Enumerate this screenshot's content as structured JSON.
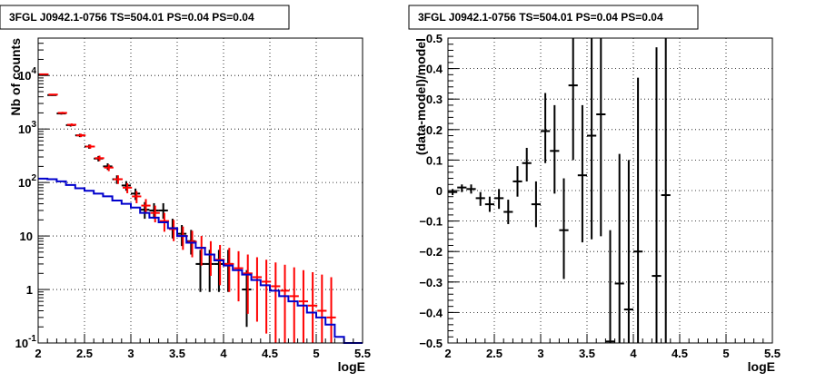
{
  "chart_data": [
    {
      "type": "scatter",
      "title": "3FGL J0942.1-0756 TS=504.01 PS=0.04 PS=0.04",
      "xlabel": "logE",
      "ylabel": "Nb of counts",
      "xlim": [
        2,
        5.5
      ],
      "ylim": [
        0.1,
        50000
      ],
      "yscale": "log",
      "grid": true,
      "x_ticks": [
        "2",
        "2.5",
        "3",
        "3.5",
        "4",
        "4.5",
        "5",
        "5.5"
      ],
      "y_ticks": [
        {
          "value": 0.1,
          "base": "10",
          "exp": "-1"
        },
        {
          "value": 1,
          "base": "1",
          "exp": ""
        },
        {
          "value": 10,
          "base": "10",
          "exp": ""
        },
        {
          "value": 100,
          "base": "10",
          "exp": "2"
        },
        {
          "value": 1000,
          "base": "10",
          "exp": "3"
        },
        {
          "value": 10000,
          "base": "10",
          "exp": "4"
        }
      ],
      "bin_width": 0.1,
      "series": [
        {
          "color": "#000000",
          "kind": "data",
          "points": [
            {
              "x": 2.05,
              "y": 10500,
              "lo": 10300,
              "hi": 10700
            },
            {
              "x": 2.15,
              "y": 4300,
              "lo": 4170,
              "hi": 4430
            },
            {
              "x": 2.25,
              "y": 1950,
              "lo": 1860,
              "hi": 2040
            },
            {
              "x": 2.35,
              "y": 1180,
              "lo": 1110,
              "hi": 1250
            },
            {
              "x": 2.45,
              "y": 760,
              "lo": 705,
              "hi": 815
            },
            {
              "x": 2.55,
              "y": 470,
              "lo": 428,
              "hi": 512
            },
            {
              "x": 2.65,
              "y": 280,
              "lo": 247,
              "hi": 313
            },
            {
              "x": 2.75,
              "y": 200,
              "lo": 172,
              "hi": 228
            },
            {
              "x": 2.85,
              "y": 115,
              "lo": 94,
              "hi": 136
            },
            {
              "x": 2.95,
              "y": 88,
              "lo": 70,
              "hi": 106
            },
            {
              "x": 3.05,
              "y": 62,
              "lo": 47,
              "hi": 77
            },
            {
              "x": 3.15,
              "y": 31,
              "lo": 21,
              "hi": 43
            },
            {
              "x": 3.25,
              "y": 30,
              "lo": 21,
              "hi": 41
            },
            {
              "x": 3.35,
              "y": 30,
              "lo": 21,
              "hi": 41
            },
            {
              "x": 3.45,
              "y": 14,
              "lo": 9,
              "hi": 21
            },
            {
              "x": 3.55,
              "y": 11,
              "lo": 6.5,
              "hi": 16
            },
            {
              "x": 3.65,
              "y": 8,
              "lo": 4.5,
              "hi": 13
            },
            {
              "x": 3.75,
              "y": 3,
              "lo": 0.9,
              "hi": 5.5
            },
            {
              "x": 3.85,
              "y": 3,
              "lo": 0.9,
              "hi": 5.5
            },
            {
              "x": 3.95,
              "y": 3,
              "lo": 0.9,
              "hi": 5.5
            },
            {
              "x": 4.05,
              "y": 3,
              "lo": 0.9,
              "hi": 5.5
            },
            {
              "x": 4.25,
              "y": 1,
              "lo": 0.2,
              "hi": 2.3
            }
          ]
        },
        {
          "color": "#ff0000",
          "kind": "model",
          "points": [
            {
              "x": 2.05,
              "y": 10500,
              "lo": 10300,
              "hi": 10700
            },
            {
              "x": 2.15,
              "y": 4400,
              "lo": 4270,
              "hi": 4530
            },
            {
              "x": 2.25,
              "y": 2000,
              "lo": 1910,
              "hi": 2090
            },
            {
              "x": 2.35,
              "y": 1200,
              "lo": 1130,
              "hi": 1270
            },
            {
              "x": 2.45,
              "y": 760,
              "lo": 705,
              "hi": 815
            },
            {
              "x": 2.55,
              "y": 470,
              "lo": 428,
              "hi": 512
            },
            {
              "x": 2.65,
              "y": 285,
              "lo": 252,
              "hi": 318
            },
            {
              "x": 2.75,
              "y": 190,
              "lo": 163,
              "hi": 217
            },
            {
              "x": 2.85,
              "y": 115,
              "lo": 94,
              "hi": 136
            },
            {
              "x": 2.95,
              "y": 80,
              "lo": 63,
              "hi": 97
            },
            {
              "x": 3.05,
              "y": 55,
              "lo": 41,
              "hi": 69
            },
            {
              "x": 3.15,
              "y": 37,
              "lo": 26,
              "hi": 49
            },
            {
              "x": 3.25,
              "y": 27,
              "lo": 18,
              "hi": 37
            },
            {
              "x": 3.35,
              "y": 19,
              "lo": 12,
              "hi": 27
            },
            {
              "x": 3.45,
              "y": 13.5,
              "lo": 8,
              "hi": 20
            },
            {
              "x": 3.55,
              "y": 10,
              "lo": 5.5,
              "hi": 15
            },
            {
              "x": 3.65,
              "y": 7.8,
              "lo": 4,
              "hi": 12.5
            },
            {
              "x": 3.75,
              "y": 6,
              "lo": 2.8,
              "hi": 10
            },
            {
              "x": 3.85,
              "y": 4.5,
              "lo": 1.8,
              "hi": 8
            },
            {
              "x": 3.95,
              "y": 3.6,
              "lo": 1.2,
              "hi": 6.8
            },
            {
              "x": 4.05,
              "y": 3,
              "lo": 0.9,
              "hi": 6
            },
            {
              "x": 4.15,
              "y": 2.5,
              "lo": 0.6,
              "hi": 5.2
            },
            {
              "x": 4.25,
              "y": 2,
              "lo": 0.35,
              "hi": 4.5
            },
            {
              "x": 4.35,
              "y": 1.7,
              "lo": 0.25,
              "hi": 4
            },
            {
              "x": 4.45,
              "y": 1.4,
              "lo": 0.15,
              "hi": 3.6
            },
            {
              "x": 4.55,
              "y": 1.15,
              "lo": 0.1,
              "hi": 3.2
            },
            {
              "x": 4.65,
              "y": 0.95,
              "lo": 0.1,
              "hi": 2.9
            },
            {
              "x": 4.75,
              "y": 0.75,
              "lo": 0.1,
              "hi": 2.6
            },
            {
              "x": 4.85,
              "y": 0.6,
              "lo": 0.1,
              "hi": 2.3
            },
            {
              "x": 4.95,
              "y": 0.5,
              "lo": 0.1,
              "hi": 2.1
            },
            {
              "x": 5.05,
              "y": 0.4,
              "lo": 0.1,
              "hi": 1.9
            },
            {
              "x": 5.15,
              "y": 0.3,
              "lo": 0.1,
              "hi": 1.7
            }
          ]
        },
        {
          "color": "#0000cc",
          "kind": "histogram",
          "bins": [
            {
              "x0": 2.0,
              "x1": 2.1,
              "y": 118
            },
            {
              "x0": 2.1,
              "x1": 2.2,
              "y": 115
            },
            {
              "x0": 2.2,
              "x1": 2.3,
              "y": 105
            },
            {
              "x0": 2.3,
              "x1": 2.4,
              "y": 90
            },
            {
              "x0": 2.4,
              "x1": 2.5,
              "y": 78
            },
            {
              "x0": 2.5,
              "x1": 2.6,
              "y": 70
            },
            {
              "x0": 2.6,
              "x1": 2.7,
              "y": 62
            },
            {
              "x0": 2.7,
              "x1": 2.8,
              "y": 55
            },
            {
              "x0": 2.8,
              "x1": 2.9,
              "y": 46
            },
            {
              "x0": 2.9,
              "x1": 3.0,
              "y": 40
            },
            {
              "x0": 3.0,
              "x1": 3.1,
              "y": 34
            },
            {
              "x0": 3.1,
              "x1": 3.2,
              "y": 27
            },
            {
              "x0": 3.2,
              "x1": 3.3,
              "y": 22
            },
            {
              "x0": 3.3,
              "x1": 3.4,
              "y": 18
            },
            {
              "x0": 3.4,
              "x1": 3.5,
              "y": 14
            },
            {
              "x0": 3.5,
              "x1": 3.6,
              "y": 10
            },
            {
              "x0": 3.6,
              "x1": 3.7,
              "y": 7.5
            },
            {
              "x0": 3.7,
              "x1": 3.8,
              "y": 6
            },
            {
              "x0": 3.8,
              "x1": 3.9,
              "y": 4.5
            },
            {
              "x0": 3.9,
              "x1": 4.0,
              "y": 3.5
            },
            {
              "x0": 4.0,
              "x1": 4.1,
              "y": 2.8
            },
            {
              "x0": 4.1,
              "x1": 4.2,
              "y": 2.3
            },
            {
              "x0": 4.2,
              "x1": 4.3,
              "y": 1.9
            },
            {
              "x0": 4.3,
              "x1": 4.4,
              "y": 1.5
            },
            {
              "x0": 4.4,
              "x1": 4.5,
              "y": 1.2
            },
            {
              "x0": 4.5,
              "x1": 4.6,
              "y": 0.95
            },
            {
              "x0": 4.6,
              "x1": 4.7,
              "y": 0.75
            },
            {
              "x0": 4.7,
              "x1": 4.8,
              "y": 0.6
            },
            {
              "x0": 4.8,
              "x1": 4.9,
              "y": 0.5
            },
            {
              "x0": 4.9,
              "x1": 5.0,
              "y": 0.37
            },
            {
              "x0": 5.0,
              "x1": 5.1,
              "y": 0.3
            },
            {
              "x0": 5.1,
              "x1": 5.2,
              "y": 0.22
            },
            {
              "x0": 5.2,
              "x1": 5.3,
              "y": 0.13
            },
            {
              "x0": 5.3,
              "x1": 5.4,
              "y": 0.1
            },
            {
              "x0": 5.4,
              "x1": 5.5,
              "y": 0.1
            }
          ]
        }
      ]
    },
    {
      "type": "scatter",
      "title": "3FGL J0942.1-0756 TS=504.01 PS=0.04 PS=0.04",
      "xlabel": "logE",
      "ylabel": "(data-model)/model",
      "xlim": [
        2,
        5.5
      ],
      "ylim": [
        -0.5,
        0.5
      ],
      "grid": true,
      "x_ticks": [
        "2",
        "2.5",
        "3",
        "3.5",
        "4",
        "4.5",
        "5",
        "5.5"
      ],
      "y_ticks": [
        "-0.5",
        "-0.4",
        "-0.3",
        "-0.2",
        "-0.1",
        "0",
        "0.1",
        "0.2",
        "0.3",
        "0.4",
        "0.5"
      ],
      "bin_width": 0.1,
      "series": [
        {
          "color": "#000000",
          "kind": "residual",
          "points": [
            {
              "x": 2.05,
              "y": -0.005,
              "lo": -0.015,
              "hi": 0.005
            },
            {
              "x": 2.15,
              "y": 0.01,
              "lo": -0.005,
              "hi": 0.02
            },
            {
              "x": 2.25,
              "y": 0.005,
              "lo": -0.01,
              "hi": 0.02
            },
            {
              "x": 2.35,
              "y": -0.025,
              "lo": -0.05,
              "hi": -0.005
            },
            {
              "x": 2.45,
              "y": -0.045,
              "lo": -0.07,
              "hi": -0.02
            },
            {
              "x": 2.55,
              "y": -0.025,
              "lo": -0.06,
              "hi": 0.005
            },
            {
              "x": 2.65,
              "y": -0.07,
              "lo": -0.11,
              "hi": -0.03
            },
            {
              "x": 2.75,
              "y": 0.03,
              "lo": -0.02,
              "hi": 0.08
            },
            {
              "x": 2.85,
              "y": 0.09,
              "lo": 0.03,
              "hi": 0.14
            },
            {
              "x": 2.95,
              "y": -0.045,
              "lo": -0.12,
              "hi": 0.03
            },
            {
              "x": 3.05,
              "y": 0.195,
              "lo": 0.09,
              "hi": 0.32
            },
            {
              "x": 3.15,
              "y": 0.13,
              "lo": -0.01,
              "hi": 0.28
            },
            {
              "x": 3.25,
              "y": -0.13,
              "lo": -0.29,
              "hi": 0.04
            },
            {
              "x": 3.35,
              "y": 0.345,
              "lo": 0.1,
              "hi": 0.5
            },
            {
              "x": 3.45,
              "y": 0.05,
              "lo": -0.17,
              "hi": 0.28
            },
            {
              "x": 3.55,
              "y": 0.18,
              "lo": -0.16,
              "hi": 0.5
            },
            {
              "x": 3.65,
              "y": 0.25,
              "lo": -0.15,
              "hi": 0.5
            },
            {
              "x": 3.75,
              "y": -0.495,
              "lo": -0.5,
              "hi": -0.13
            },
            {
              "x": 3.85,
              "y": -0.305,
              "lo": -0.5,
              "hi": 0.12
            },
            {
              "x": 3.95,
              "y": -0.39,
              "lo": -0.5,
              "hi": 0.1
            },
            {
              "x": 4.05,
              "y": -0.2,
              "lo": -0.5,
              "hi": 0.37
            },
            {
              "x": 4.25,
              "y": -0.28,
              "lo": -0.5,
              "hi": 0.47
            },
            {
              "x": 4.35,
              "y": -0.015,
              "lo": -0.5,
              "hi": 0.5
            }
          ]
        }
      ]
    }
  ]
}
